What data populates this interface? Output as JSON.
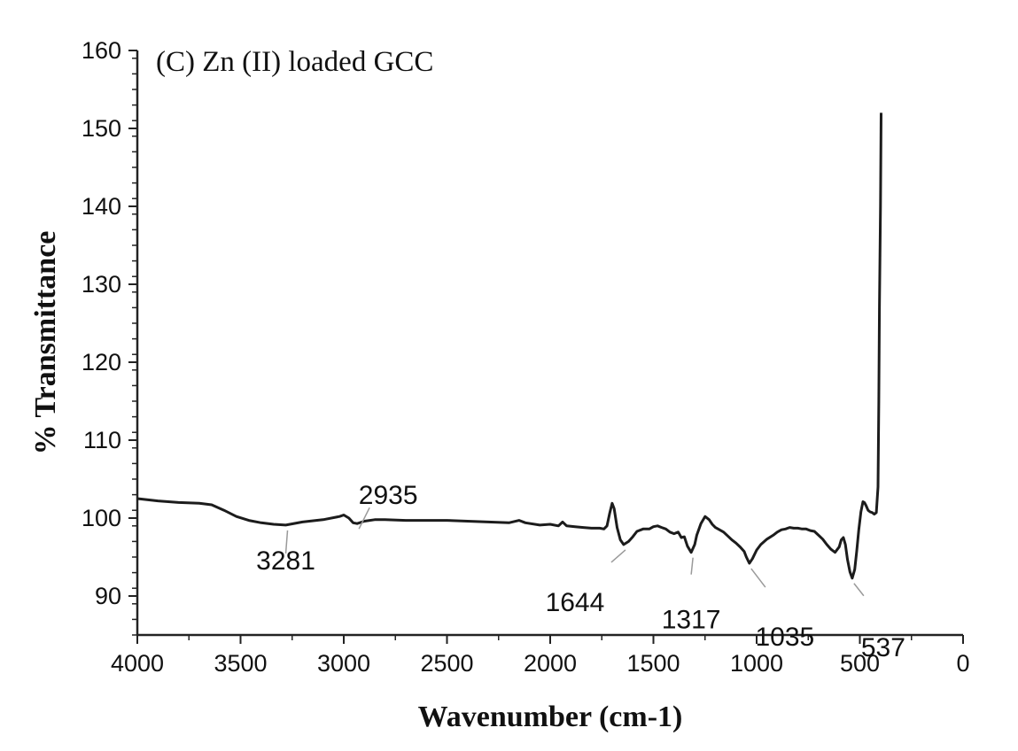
{
  "chart_data": {
    "type": "line",
    "title": "(C) Zn (II) loaded GCC",
    "xlabel": "Wavenumber (cm-1)",
    "ylabel": "% Transmittance",
    "xlim": [
      4000,
      0
    ],
    "ylim": [
      85,
      160
    ],
    "x_reversed": true,
    "grid": false,
    "x_ticks": [
      4000,
      3500,
      3000,
      2500,
      2000,
      1500,
      1000,
      500,
      0
    ],
    "y_ticks": [
      90,
      100,
      110,
      120,
      130,
      140,
      150,
      160
    ],
    "series": [
      {
        "x": [
          4000,
          3900,
          3800,
          3700,
          3640,
          3580,
          3520,
          3460,
          3400,
          3340,
          3281,
          3200,
          3100,
          3020,
          3000,
          2975,
          2955,
          2935,
          2900,
          2850,
          2800,
          2700,
          2600,
          2500,
          2400,
          2300,
          2200,
          2150,
          2120,
          2050,
          2000,
          1960,
          1940,
          1920,
          1880,
          1840,
          1800,
          1760,
          1740,
          1725,
          1712,
          1700,
          1690,
          1676,
          1660,
          1644,
          1620,
          1600,
          1580,
          1550,
          1520,
          1500,
          1480,
          1460,
          1440,
          1420,
          1400,
          1380,
          1365,
          1350,
          1335,
          1317,
          1300,
          1290,
          1270,
          1250,
          1230,
          1215,
          1200,
          1180,
          1160,
          1140,
          1120,
          1100,
          1080,
          1060,
          1050,
          1035,
          1020,
          1000,
          980,
          950,
          920,
          900,
          880,
          860,
          840,
          820,
          800,
          780,
          760,
          740,
          720,
          700,
          680,
          660,
          640,
          620,
          600,
          590,
          580,
          570,
          560,
          548,
          537,
          525,
          515,
          505,
          495,
          485,
          478,
          470,
          460,
          450,
          440,
          430,
          420,
          412,
          408,
          405,
          400,
          397
        ],
        "y": [
          102.5,
          102.2,
          102.0,
          101.9,
          101.7,
          101.0,
          100.2,
          99.7,
          99.4,
          99.2,
          99.1,
          99.5,
          99.8,
          100.2,
          100.4,
          100.0,
          99.4,
          99.3,
          99.6,
          99.8,
          99.8,
          99.7,
          99.7,
          99.7,
          99.6,
          99.5,
          99.4,
          99.7,
          99.4,
          99.1,
          99.2,
          99.0,
          99.5,
          99.0,
          98.9,
          98.8,
          98.7,
          98.7,
          98.6,
          99.0,
          100.6,
          101.9,
          101.2,
          98.8,
          97.2,
          96.6,
          97.0,
          97.6,
          98.3,
          98.6,
          98.6,
          98.9,
          99.0,
          98.8,
          98.6,
          98.2,
          98.0,
          98.2,
          97.5,
          97.6,
          96.4,
          95.6,
          96.6,
          97.8,
          99.3,
          100.2,
          99.8,
          99.2,
          98.8,
          98.5,
          98.2,
          97.7,
          97.2,
          96.8,
          96.3,
          95.7,
          95.0,
          94.2,
          94.8,
          95.9,
          96.6,
          97.3,
          97.8,
          98.2,
          98.5,
          98.6,
          98.8,
          98.7,
          98.7,
          98.6,
          98.6,
          98.4,
          98.3,
          97.8,
          97.3,
          96.6,
          96.0,
          95.6,
          96.3,
          97.2,
          97.5,
          96.6,
          94.7,
          93.1,
          92.3,
          93.4,
          95.8,
          98.5,
          100.8,
          102.1,
          102.0,
          101.6,
          101.0,
          100.8,
          100.7,
          100.5,
          100.7,
          104.0,
          115.0,
          127.0,
          140.0,
          152.0
        ]
      }
    ],
    "annotations": [
      {
        "label": "3281",
        "x": 3281,
        "y": 99.1
      },
      {
        "label": "2935",
        "x": 2935,
        "y": 99.3
      },
      {
        "label": "1644",
        "x": 1644,
        "y": 96.6
      },
      {
        "label": "1317",
        "x": 1317,
        "y": 95.6
      },
      {
        "label": "1035",
        "x": 1035,
        "y": 94.2
      },
      {
        "label": "537",
        "x": 537,
        "y": 92.3
      }
    ]
  }
}
